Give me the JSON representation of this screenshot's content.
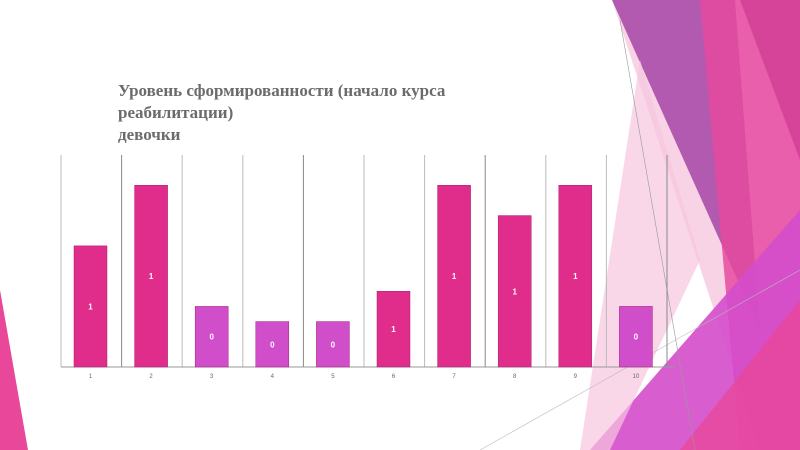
{
  "slide": {
    "accent_pink": "#e02d8c",
    "accent_purple": "#d14ecb"
  },
  "chart_data": {
    "type": "bar",
    "title": "Уровень сформированности (начало курса\nреабилитации)\nдевочки",
    "categories": [
      "1",
      "2",
      "3",
      "4",
      "5",
      "6",
      "7",
      "8",
      "9",
      "10"
    ],
    "values": [
      0.8,
      1.2,
      0.4,
      0.3,
      0.3,
      0.5,
      1.2,
      1.0,
      1.2,
      0.4
    ],
    "data_labels": [
      "1",
      "1",
      "0",
      "0",
      "0",
      "1",
      "1",
      "1",
      "1",
      "0"
    ],
    "colors": [
      "#e02d8c",
      "#e02d8c",
      "#d14ecb",
      "#d14ecb",
      "#d14ecb",
      "#e02d8c",
      "#e02d8c",
      "#e02d8c",
      "#e02d8c",
      "#d14ecb"
    ],
    "xlabel": "",
    "ylabel": "",
    "ylim": [
      0,
      1.4
    ],
    "grid": "vertical",
    "legend": "none"
  }
}
